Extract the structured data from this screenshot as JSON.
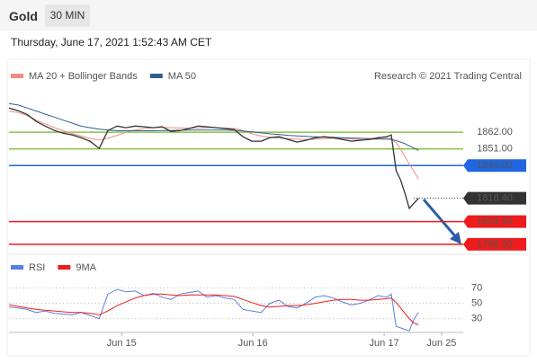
{
  "header": {
    "title": "Gold",
    "interval": "30 MIN",
    "date": "Thursday, June 17, 2021 1:52:43 AM CET"
  },
  "chart_data": [
    {
      "type": "line",
      "annotation": "Research © 2021 Trading Central",
      "x": [
        -20.6,
        -18.9,
        -17.3,
        -15.6,
        -14.0,
        -12.3,
        -10.7,
        -9.0,
        -7.4,
        -5.8,
        -4.1,
        -2.5,
        -0.8,
        0.8,
        2.5,
        4.1,
        5.8,
        7.4,
        9.0,
        10.7,
        12.3,
        14.0,
        15.6,
        17.3,
        18.9,
        20.6,
        22.2,
        23.8,
        25.5,
        27.1,
        28.8,
        30.4,
        32.1,
        33.7,
        35.4,
        37.0,
        38.7,
        40.3,
        42.0,
        43.6,
        45.2,
        46.9,
        48.5,
        49.3,
        50.2,
        51.0,
        51.8,
        52.6,
        53.5,
        54.3
      ],
      "values": [
        1878.0,
        1876.2,
        1873.8,
        1869.1,
        1866.1,
        1863.2,
        1861.4,
        1860.2,
        1858.4,
        1856.1,
        1851.3,
        1863.2,
        1866.1,
        1865.0,
        1866.1,
        1865.6,
        1865.0,
        1865.6,
        1862.6,
        1863.2,
        1864.4,
        1866.1,
        1865.6,
        1865.0,
        1864.4,
        1863.8,
        1859.0,
        1856.1,
        1856.1,
        1858.4,
        1859.0,
        1857.3,
        1855.5,
        1856.7,
        1858.4,
        1859.0,
        1858.4,
        1857.3,
        1856.1,
        1856.7,
        1857.3,
        1858.4,
        1859.0,
        1860.2,
        1836.6,
        1830.6,
        1821.8,
        1811.7,
        1815.3,
        1818.4
      ],
      "color": "#333333",
      "series": [
        {
          "name": "MA 20 + Bollinger Bands",
          "color": "#f28b82",
          "values": [
            1876,
            1875,
            1873,
            1870,
            1867.5,
            1865,
            1863,
            1861,
            1859.5,
            1858,
            1857,
            1858,
            1860,
            1862,
            1863.5,
            1864.5,
            1865,
            1865.2,
            1865,
            1864.8,
            1864.6,
            1864.8,
            1865,
            1865,
            1864.8,
            1864.5,
            1863,
            1861,
            1859.5,
            1858.6,
            1858.2,
            1857.8,
            1857.4,
            1857.2,
            1857.4,
            1857.8,
            1858,
            1858,
            1857.6,
            1857.2,
            1857,
            1857.4,
            1857.8,
            1858,
            1855,
            1851,
            1846,
            1841,
            1836,
            1831
          ]
        },
        {
          "name": "MA 50",
          "color": "#2e5f8f",
          "values": [
            1881,
            1880,
            1878,
            1876,
            1874,
            1872,
            1870,
            1868,
            1866,
            1865,
            1864,
            1863.5,
            1863,
            1863,
            1863,
            1863,
            1863,
            1863.2,
            1863.2,
            1863.3,
            1863.4,
            1863.5,
            1863.5,
            1863.5,
            1863.4,
            1863.3,
            1862.8,
            1862.2,
            1861.6,
            1861,
            1860.5,
            1860,
            1859.6,
            1859.3,
            1859,
            1858.8,
            1858.6,
            1858.4,
            1858.2,
            1858,
            1857.8,
            1857.6,
            1857.4,
            1857.3,
            1856.5,
            1855.5,
            1854.5,
            1853,
            1851.5,
            1850
          ]
        }
      ],
      "levels": [
        {
          "value": 1862,
          "label": "1862.00",
          "color": "#8bc34a",
          "boxed": false,
          "dotted": false
        },
        {
          "value": 1851,
          "label": "1851.00",
          "color": "#8bc34a",
          "boxed": false,
          "dotted": false
        },
        {
          "value": 1840,
          "label": "1840.00",
          "color": "#1f66e0",
          "boxed": true,
          "dotted": false
        },
        {
          "value": 1818.4,
          "label": "1818.40",
          "color": "#333333",
          "boxed": true,
          "dotted": true
        },
        {
          "value": 1803,
          "label": "1803.00",
          "color": "#ee1c1c",
          "boxed": true,
          "dotted": false
        },
        {
          "value": 1788,
          "label": "1788.00",
          "color": "#ee1c1c",
          "boxed": true,
          "dotted": false
        }
      ],
      "xlim": [
        -20.6,
        60
      ],
      "ylim": [
        1782,
        1890
      ]
    },
    {
      "type": "line",
      "x": [
        -20.6,
        -18.9,
        -17.3,
        -15.6,
        -14.0,
        -12.3,
        -10.7,
        -9.0,
        -7.4,
        -5.8,
        -4.1,
        -2.5,
        -0.8,
        0.8,
        2.5,
        4.1,
        5.8,
        7.4,
        9.0,
        10.7,
        12.3,
        14.0,
        15.6,
        17.3,
        18.9,
        20.6,
        22.2,
        23.8,
        25.5,
        27.1,
        28.8,
        30.4,
        32.1,
        33.7,
        35.4,
        37.0,
        38.7,
        40.3,
        42.0,
        43.6,
        45.2,
        46.9,
        48.5,
        49.3,
        50.2,
        51.0,
        51.8,
        52.6,
        53.5,
        54.3
      ],
      "series": [
        {
          "name": "RSI",
          "color": "#5b7fe0",
          "values": [
            45,
            44,
            42,
            38,
            40,
            37,
            36,
            35,
            38,
            34,
            30,
            62,
            68,
            65,
            66,
            60,
            63,
            58,
            55,
            62,
            64,
            66,
            58,
            60,
            57,
            55,
            42,
            40,
            38,
            50,
            54,
            46,
            44,
            50,
            58,
            60,
            57,
            52,
            48,
            50,
            54,
            60,
            58,
            62,
            20,
            18,
            16,
            14,
            30,
            38
          ]
        },
        {
          "name": "9MA",
          "color": "#ee1c1c",
          "values": [
            48,
            46,
            44,
            42,
            41,
            40,
            39,
            38,
            38,
            37,
            35,
            40,
            47,
            52,
            57,
            60,
            62,
            62,
            61,
            60,
            61,
            61,
            61,
            61,
            60,
            59,
            55,
            51,
            47,
            45,
            46,
            47,
            47,
            48,
            50,
            52,
            54,
            55,
            55,
            54,
            54,
            55,
            56,
            57,
            51,
            44,
            37,
            30,
            24,
            22
          ]
        }
      ],
      "xlim": [
        -20.6,
        60
      ],
      "ylim": [
        12,
        94
      ],
      "yticks": [
        70,
        50,
        30
      ],
      "grid": true,
      "xticks": [
        {
          "value": 0,
          "label": "Jun 15"
        },
        {
          "value": 24,
          "label": "Jun 16"
        },
        {
          "value": 48,
          "label": "Jun 17"
        },
        {
          "value": 58.5,
          "label": "Jun 25"
        }
      ]
    }
  ]
}
